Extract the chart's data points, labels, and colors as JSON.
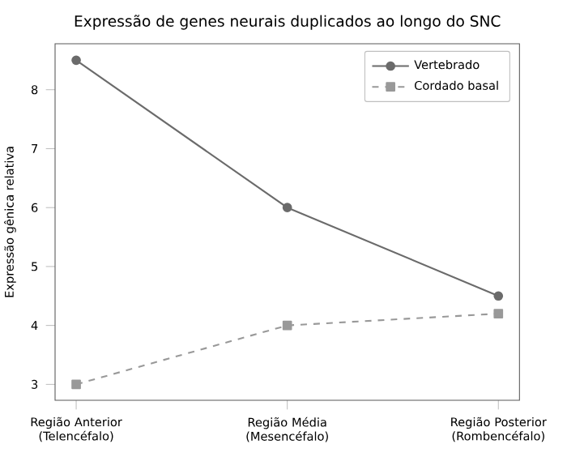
{
  "chart_data": {
    "type": "line",
    "title": "Expressão de genes neurais duplicados ao longo do SNC",
    "ylabel": "Expressão gênica relativa",
    "categories": [
      "Região Anterior (Telencéfalo)",
      "Região Média (Mesencéfalo)",
      "Região Posterior (Rombencéfalo)"
    ],
    "series": [
      {
        "name": "Vertebrado",
        "color": "#6b6b6b",
        "values": [
          8.5,
          6.0,
          4.5
        ],
        "marker": "circle",
        "line_style": "solid"
      },
      {
        "name": "Cordado basal",
        "color": "#999999",
        "values": [
          3.0,
          4.0,
          4.2
        ],
        "marker": "square",
        "line_style": "dashed"
      }
    ],
    "ylim": [
      2.73,
      8.78
    ],
    "yticks": [
      3,
      4,
      5,
      6,
      7,
      8
    ],
    "grid": false,
    "legend": "top right"
  }
}
